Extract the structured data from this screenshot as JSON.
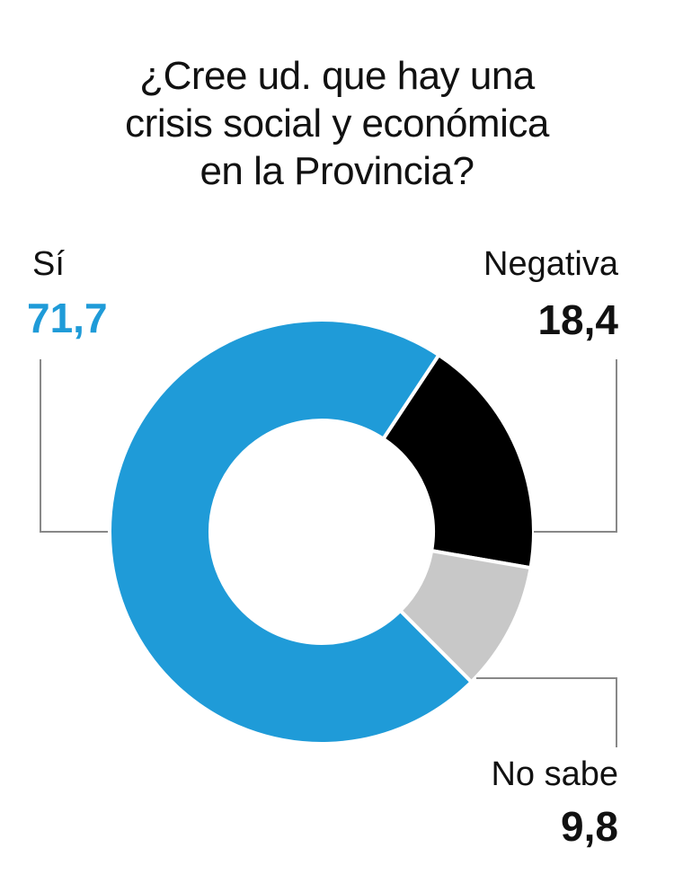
{
  "chart_data": {
    "type": "pie",
    "title_lines": [
      "¿Cree ud. que hay una",
      "crisis social y económica",
      "en la Provincia?"
    ],
    "slices": [
      {
        "label": "Sí",
        "value": 71.7,
        "value_text": "71,7",
        "color": "#1f9bd8"
      },
      {
        "label": "Negativa",
        "value": 18.4,
        "value_text": "18,4",
        "color": "#000000"
      },
      {
        "label": "No sabe",
        "value": 9.8,
        "value_text": "9,8",
        "color": "#c8c8c8"
      }
    ],
    "legend": "none",
    "grid": false
  }
}
